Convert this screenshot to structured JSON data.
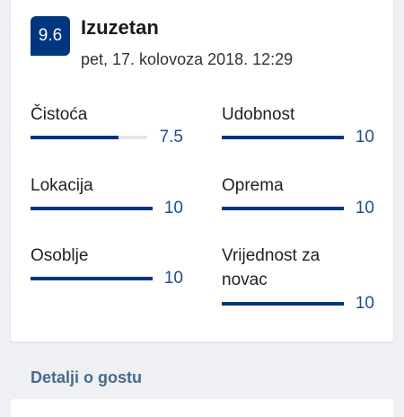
{
  "review": {
    "score": "9.6",
    "title": "Izuzetan",
    "date": "pet, 17. kolovoza 2018. 12:29"
  },
  "categories": [
    {
      "label": "Čistoća",
      "value": "7.5",
      "fraction": 0.75
    },
    {
      "label": "Udobnost",
      "value": "10",
      "fraction": 1.0
    },
    {
      "label": "Lokacija",
      "value": "10",
      "fraction": 1.0
    },
    {
      "label": "Oprema",
      "value": "10",
      "fraction": 1.0
    },
    {
      "label": "Osoblje",
      "value": "10",
      "fraction": 1.0
    },
    {
      "label": "Vrijednost za novac",
      "value": "10",
      "fraction": 1.0
    }
  ],
  "guest_section": {
    "heading": "Detalji o gostu"
  },
  "colors": {
    "accent": "#003580",
    "value_text": "#1f4e8c",
    "track": "#e6e6e6"
  }
}
